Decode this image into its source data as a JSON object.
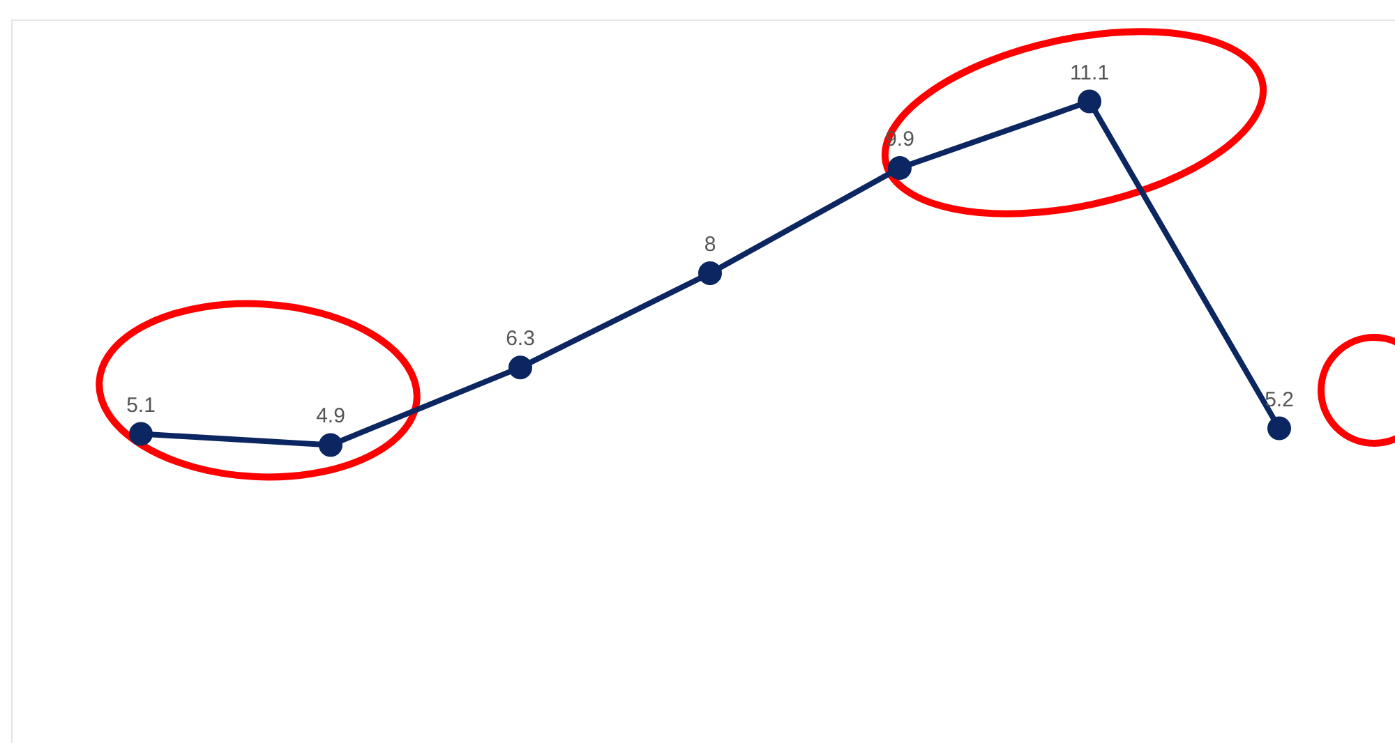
{
  "chart_data": {
    "type": "line",
    "categories": [
      null,
      null,
      null,
      null,
      null,
      null,
      null
    ],
    "series": [
      {
        "color": "#0b2660",
        "values": [
          5.1,
          4.9,
          6.3,
          8,
          9.9,
          11.1,
          5.2
        ]
      }
    ],
    "marker": "circle",
    "line_style": "solid",
    "data_labels": true
  }
}
